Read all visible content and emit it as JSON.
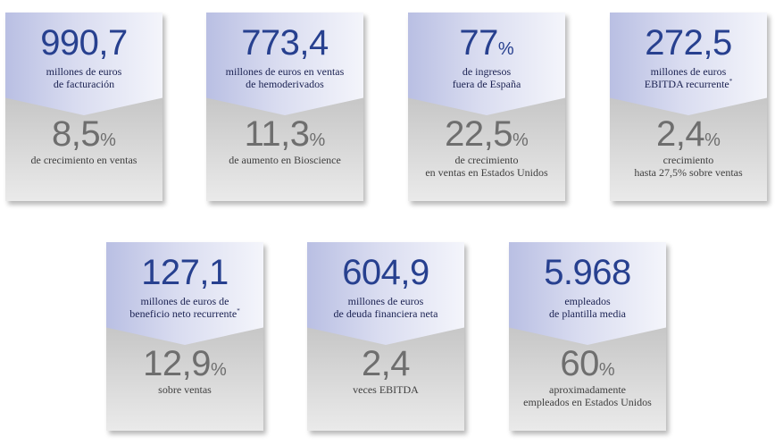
{
  "cards": [
    {
      "top_value": "990,7",
      "top_unit": "",
      "top_label": "millones de euros\nde facturación",
      "top_note": "",
      "bottom_value": "8,5",
      "bottom_unit": "%",
      "bottom_label": "de crecimiento en ventas"
    },
    {
      "top_value": "773,4",
      "top_unit": "",
      "top_label": "millones de euros en ventas\nde hemoderivados",
      "top_note": "",
      "bottom_value": "11,3",
      "bottom_unit": "%",
      "bottom_label": "de aumento en Bioscience"
    },
    {
      "top_value": "77",
      "top_unit": "%",
      "top_label": "de ingresos\nfuera de España",
      "top_note": "",
      "bottom_value": "22,5",
      "bottom_unit": "%",
      "bottom_label": "de crecimiento\nen ventas en Estados Unidos"
    },
    {
      "top_value": "272,5",
      "top_unit": "",
      "top_label": "millones de euros\nEBITDA recurrente",
      "top_note": "*",
      "bottom_value": "2,4",
      "bottom_unit": "%",
      "bottom_label": "crecimiento\nhasta 27,5% sobre ventas"
    },
    {
      "top_value": "127,1",
      "top_unit": "",
      "top_label": "millones de euros de\nbeneficio neto recurrente",
      "top_note": "*",
      "bottom_value": "12,9",
      "bottom_unit": "%",
      "bottom_label": "sobre ventas"
    },
    {
      "top_value": "604,9",
      "top_unit": "",
      "top_label": "millones de euros\nde deuda financiera neta",
      "top_note": "",
      "bottom_value": "2,4",
      "bottom_unit": "",
      "bottom_label": "veces EBITDA"
    },
    {
      "top_value": "5.968",
      "top_unit": "",
      "top_label": "empleados\nde plantilla media",
      "top_note": "",
      "bottom_value": "60",
      "bottom_unit": "%",
      "bottom_label": "aproximadamente\nempleados en Estados Unidos"
    }
  ]
}
